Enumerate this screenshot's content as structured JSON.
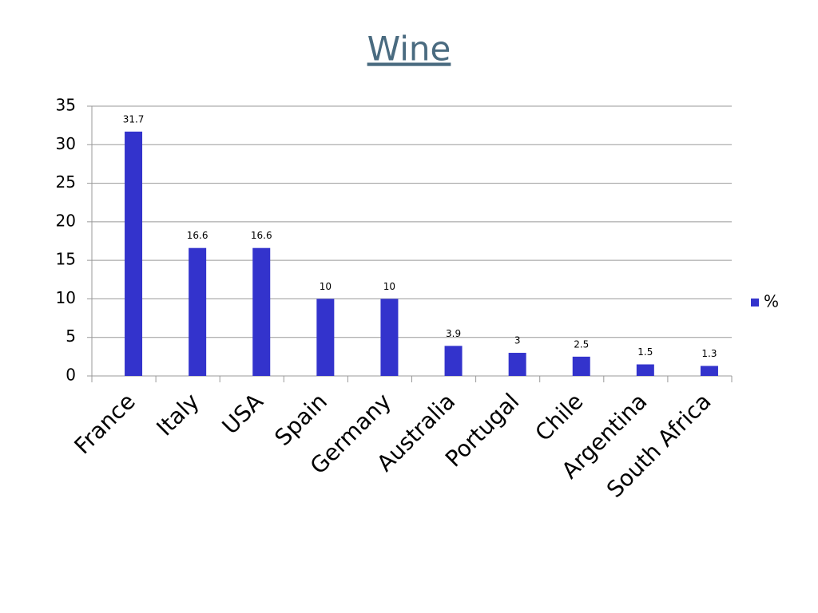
{
  "chart_data": {
    "type": "bar",
    "title": "Wine",
    "categories": [
      "France",
      "Italy",
      "USA",
      "Spain",
      "Germany",
      "Australia",
      "Portugal",
      "Chile",
      "Argentina",
      "South Africa"
    ],
    "series": [
      {
        "name": "%",
        "color": "#3333cc",
        "values": [
          31.7,
          16.6,
          16.6,
          10,
          10,
          3.9,
          3,
          2.5,
          1.5,
          1.3
        ]
      }
    ],
    "ylim": [
      0,
      35
    ],
    "yticks": [
      0,
      5,
      10,
      15,
      20,
      25,
      30,
      35
    ],
    "grid": true,
    "legend": "right"
  }
}
